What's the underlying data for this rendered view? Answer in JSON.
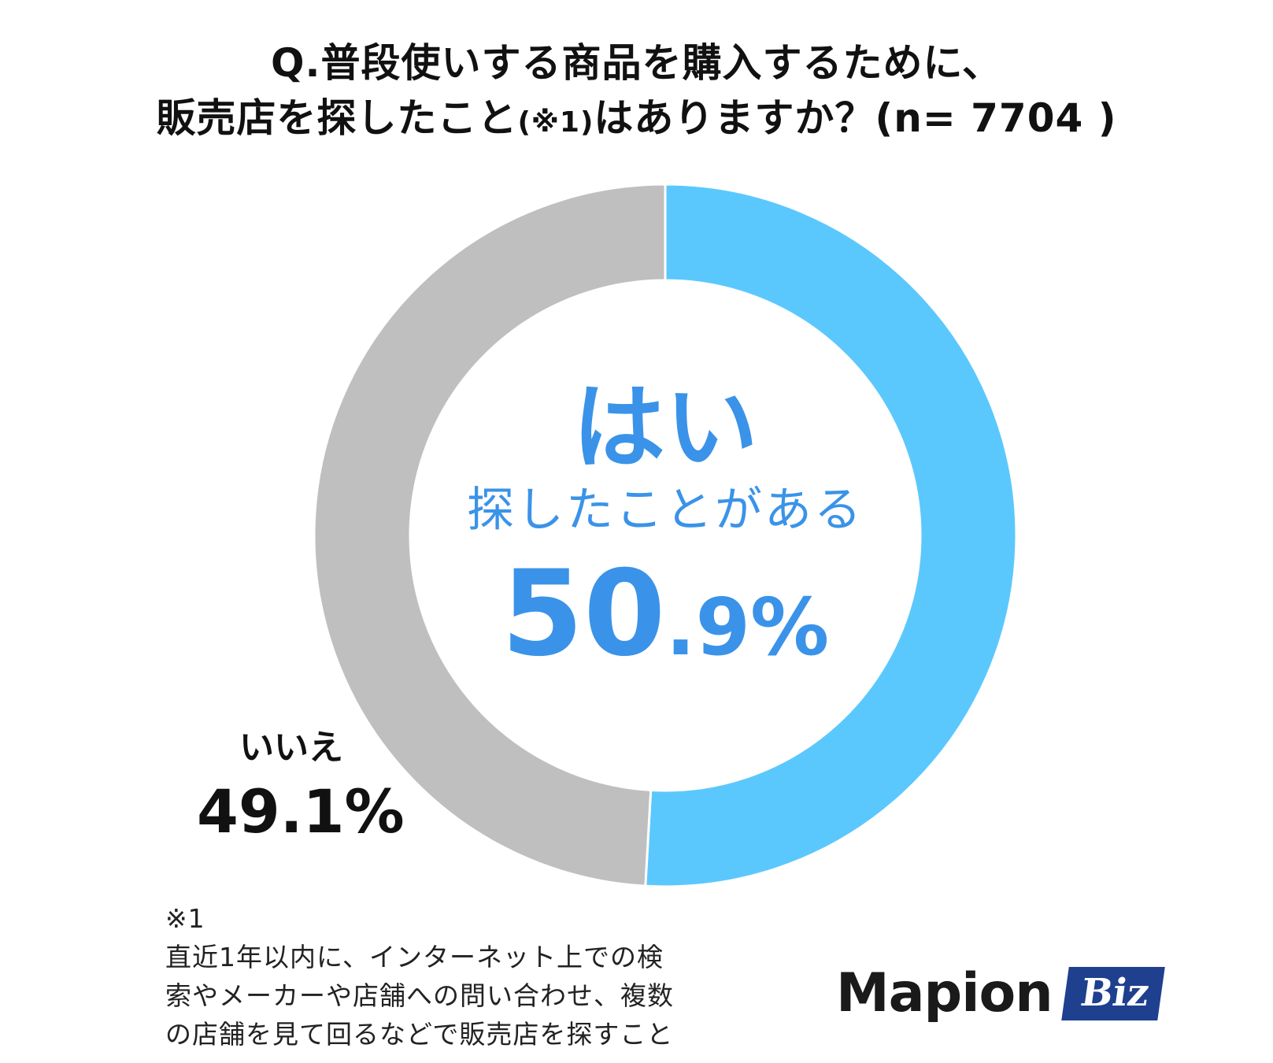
{
  "title": {
    "line1": "Q.普段使いする商品を購入するために、",
    "line2_main": "販売店を探したこと",
    "line2_note": "(※1)",
    "line2_rest": "はありますか？(n= 7704 )"
  },
  "chart_data": {
    "type": "pie",
    "variant": "donut",
    "n": 7704,
    "start_angle_deg": 0,
    "direction": "clockwise",
    "series": [
      {
        "name": "はい",
        "sublabel": "探したことがある",
        "value": 50.9,
        "value_int": "50",
        "value_dec": ".9%",
        "color": "#5bc8fd"
      },
      {
        "name": "いいえ",
        "value": 49.1,
        "value_text": "49.1%",
        "color": "#bfbfbf"
      }
    ]
  },
  "colors": {
    "accent_text": "#3a93e8",
    "logo_badge": "#1f3f8f"
  },
  "note": {
    "mark": "※1",
    "line1": "直近1年以内に、インターネット上での検",
    "line2": "索やメーカーや店舗への問い合わせ、複数",
    "line3": "の店舗を見て回るなどで販売店を探すこと"
  },
  "logo": {
    "main": "Mapion",
    "badge": "Biz"
  }
}
